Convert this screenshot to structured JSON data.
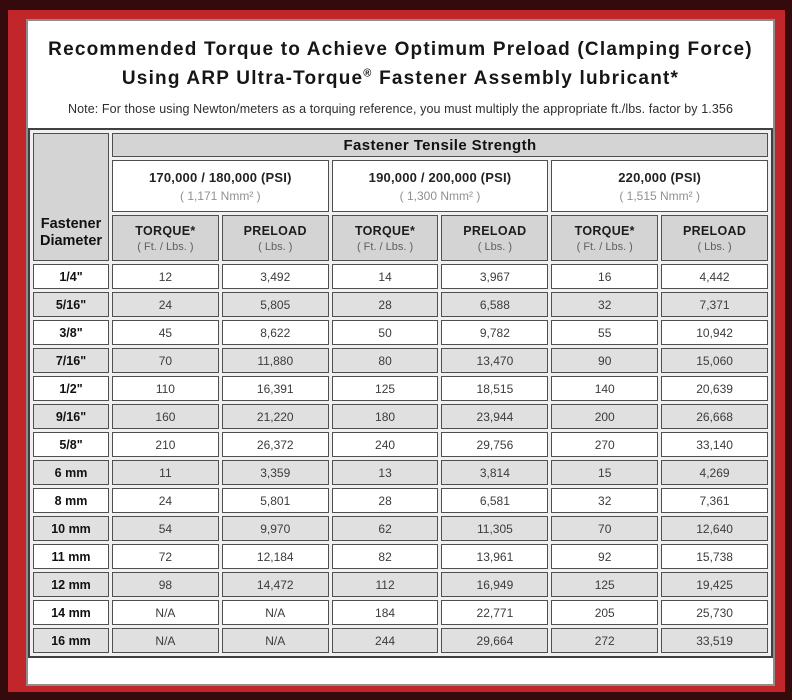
{
  "colors": {
    "frame_outer": "#350a0c",
    "frame_red": "#c1262b",
    "header_gray": "#d4d4d4",
    "row_gray": "#e0e0e0"
  },
  "title": {
    "line1": "Recommended Torque to Achieve Optimum Preload (Clamping Force)",
    "line2_pre": "Using ARP Ultra-Torque",
    "line2_sup": "®",
    "line2_post": " Fastener Assembly lubricant*"
  },
  "note": "Note: For those using Newton/meters as a torquing reference, you must multiply the appropriate ft./lbs. factor by 1.356",
  "table": {
    "group_header": "Fastener Tensile Strength",
    "corner_header": {
      "line1": "Fastener",
      "line2": "Diameter"
    },
    "strength_groups": [
      {
        "psi": "170,000 / 180,000 (PSI)",
        "nmm": "( 1,171 Nmm² )"
      },
      {
        "psi": "190,000 / 200,000 (PSI)",
        "nmm": "( 1,300 Nmm² )"
      },
      {
        "psi": "220,000 (PSI)",
        "nmm": "( 1,515 Nmm² )"
      }
    ],
    "col_headers": {
      "torque_label": "TORQUE*",
      "torque_unit": "( Ft. / Lbs. )",
      "preload_label": "PRELOAD",
      "preload_unit": "( Lbs. )"
    },
    "rows": [
      {
        "diameter": "1/4\"",
        "values": [
          "12",
          "3,492",
          "14",
          "3,967",
          "16",
          "4,442"
        ]
      },
      {
        "diameter": "5/16\"",
        "values": [
          "24",
          "5,805",
          "28",
          "6,588",
          "32",
          "7,371"
        ]
      },
      {
        "diameter": "3/8\"",
        "values": [
          "45",
          "8,622",
          "50",
          "9,782",
          "55",
          "10,942"
        ]
      },
      {
        "diameter": "7/16\"",
        "values": [
          "70",
          "11,880",
          "80",
          "13,470",
          "90",
          "15,060"
        ]
      },
      {
        "diameter": "1/2\"",
        "values": [
          "110",
          "16,391",
          "125",
          "18,515",
          "140",
          "20,639"
        ]
      },
      {
        "diameter": "9/16\"",
        "values": [
          "160",
          "21,220",
          "180",
          "23,944",
          "200",
          "26,668"
        ]
      },
      {
        "diameter": "5/8\"",
        "values": [
          "210",
          "26,372",
          "240",
          "29,756",
          "270",
          "33,140"
        ]
      },
      {
        "diameter": "6 mm",
        "values": [
          "11",
          "3,359",
          "13",
          "3,814",
          "15",
          "4,269"
        ]
      },
      {
        "diameter": "8 mm",
        "values": [
          "24",
          "5,801",
          "28",
          "6,581",
          "32",
          "7,361"
        ]
      },
      {
        "diameter": "10 mm",
        "values": [
          "54",
          "9,970",
          "62",
          "11,305",
          "70",
          "12,640"
        ]
      },
      {
        "diameter": "11 mm",
        "values": [
          "72",
          "12,184",
          "82",
          "13,961",
          "92",
          "15,738"
        ]
      },
      {
        "diameter": "12 mm",
        "values": [
          "98",
          "14,472",
          "112",
          "16,949",
          "125",
          "19,425"
        ]
      },
      {
        "diameter": "14 mm",
        "values": [
          "N/A",
          "N/A",
          "184",
          "22,771",
          "205",
          "25,730"
        ]
      },
      {
        "diameter": "16 mm",
        "values": [
          "N/A",
          "N/A",
          "244",
          "29,664",
          "272",
          "33,519"
        ]
      }
    ]
  }
}
